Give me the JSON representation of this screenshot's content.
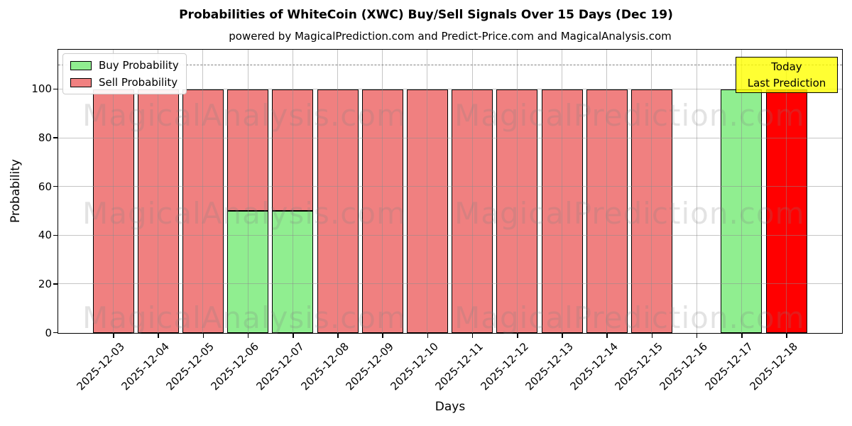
{
  "chart_data": {
    "type": "bar",
    "stacked": true,
    "title": "Probabilities of WhiteCoin (XWC) Buy/Sell Signals Over 15 Days (Dec 19)",
    "subtitle": "powered by MagicalPrediction.com and Predict-Price.com and MagicalAnalysis.com",
    "xlabel": "Days",
    "ylabel": "Probability",
    "ylim": [
      0,
      116
    ],
    "yticks": [
      0,
      20,
      40,
      60,
      80,
      100
    ],
    "grid": true,
    "legend_position": "upper left",
    "categories": [
      "2025-12-03",
      "2025-12-04",
      "2025-12-05",
      "2025-12-06",
      "2025-12-07",
      "2025-12-08",
      "2025-12-09",
      "2025-12-10",
      "2025-12-11",
      "2025-12-12",
      "2025-12-13",
      "2025-12-14",
      "2025-12-15",
      "2025-12-16",
      "2025-12-17",
      "2025-12-18"
    ],
    "series": [
      {
        "name": "Buy Probability",
        "color": "#90ee90",
        "values": [
          0,
          0,
          0,
          50,
          50,
          0,
          0,
          0,
          0,
          0,
          0,
          0,
          0,
          0,
          100,
          0
        ]
      },
      {
        "name": "Sell Probability",
        "color": "#f08080",
        "values": [
          100,
          100,
          100,
          50,
          50,
          100,
          100,
          100,
          100,
          100,
          100,
          100,
          100,
          0,
          0,
          100
        ]
      }
    ],
    "today_index": 15,
    "today_sell_color": "#ff0000",
    "bar_edge_color": "#000000",
    "threshold_line": {
      "value": 110,
      "style": "dashed",
      "color": "#808080"
    }
  },
  "annotation": {
    "line1": "Today",
    "line2": "Last Prediction",
    "bg_color": "#ffff00",
    "border_color": "#000000"
  },
  "watermarks": {
    "left": "MagicalAnalysis.com",
    "right": "MagicalPrediction.com"
  }
}
